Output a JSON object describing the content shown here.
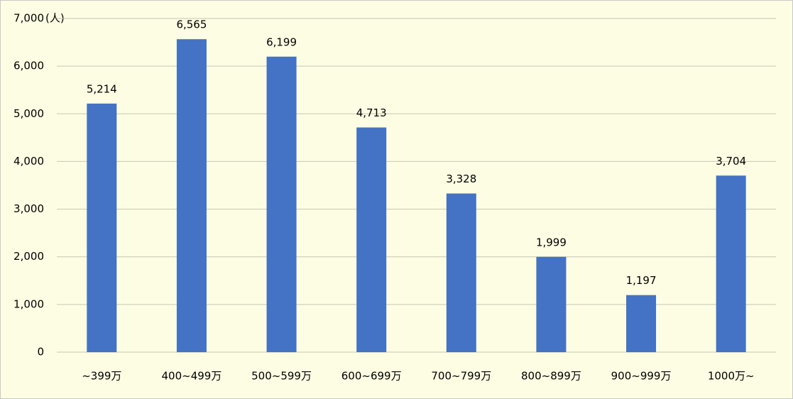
{
  "chart_data": {
    "type": "bar",
    "unit_label": "(人)",
    "categories": [
      "~399万",
      "400~499万",
      "500~599万",
      "600~699万",
      "700~799万",
      "800~899万",
      "900~999万",
      "1000万~"
    ],
    "values": [
      5214,
      6565,
      6199,
      4713,
      3328,
      1999,
      1197,
      3704
    ],
    "value_labels": [
      "5,214",
      "6,565",
      "6,199",
      "4,713",
      "3,328",
      "1,999",
      "1,197",
      "3,704"
    ],
    "color": "#4472c4",
    "ylim": [
      0,
      7000
    ],
    "yticks": [
      0,
      {
        "value": 1000,
        "label": "1,000"
      },
      {
        "value": 2000,
        "label": "2,000"
      },
      {
        "value": 3000,
        "label": "3,000"
      },
      {
        "value": 4000,
        "label": "4,000"
      },
      {
        "value": 5000,
        "label": "5,000"
      },
      {
        "value": 6000,
        "label": "6,000"
      },
      {
        "value": 7000,
        "label": "7,000"
      }
    ],
    "grid": true
  }
}
